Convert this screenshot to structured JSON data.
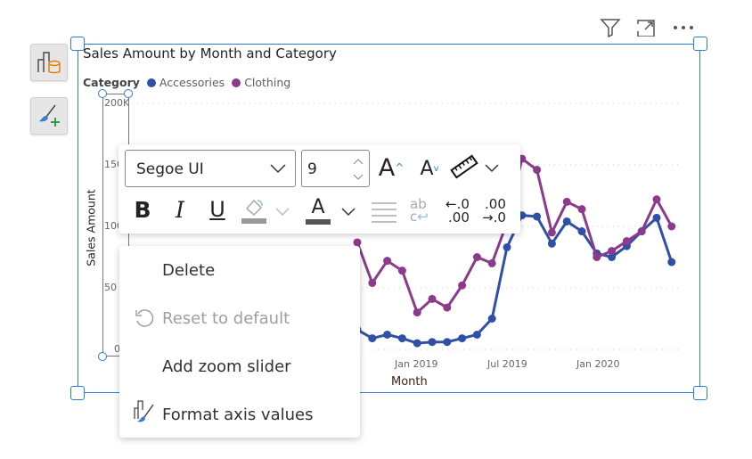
{
  "visual": {
    "title": "Sales Amount by Month and Category",
    "legend_title": "Category",
    "header_icons": [
      "filter-icon",
      "focus-mode-icon",
      "more-options-icon"
    ],
    "side_buttons": [
      "build-visual-icon",
      "format-visual-icon"
    ]
  },
  "chart_data": {
    "type": "line",
    "title": "Sales Amount by Month and Category",
    "xlabel": "Month",
    "ylabel": "Sales Amount",
    "y_ticks": [
      "200K",
      "150K",
      "100K",
      "50K",
      "0K"
    ],
    "y_tick_labels_visible": [
      "200K",
      "150",
      "100",
      "50",
      "0"
    ],
    "x_ticks": [
      "Jan 2019",
      "Jul 2019",
      "Jan 2020"
    ],
    "ylim": [
      0,
      200000
    ],
    "grid": true,
    "legend_placement": "top-left",
    "x": [
      "2018-09",
      "2018-10",
      "2018-11",
      "2018-12",
      "2019-01",
      "2019-02",
      "2019-03",
      "2019-04",
      "2019-05",
      "2019-06",
      "2019-07",
      "2019-08",
      "2019-09",
      "2019-10",
      "2019-11",
      "2019-12",
      "2020-01",
      "2020-02",
      "2020-03",
      "2020-04",
      "2020-05",
      "2020-06"
    ],
    "series": [
      {
        "name": "Accessories",
        "color": "#3050a8",
        "values": [
          16000,
          9000,
          12000,
          9000,
          5000,
          6000,
          6000,
          9000,
          12000,
          25000,
          83000,
          109000,
          108000,
          86000,
          104000,
          96000,
          78000,
          75000,
          84000,
          96000,
          107000,
          71000
        ]
      },
      {
        "name": "Clothing",
        "color": "#8b3a8c",
        "values": [
          87000,
          54000,
          72000,
          64000,
          30000,
          41000,
          34000,
          52000,
          75000,
          70000,
          103000,
          155000,
          146000,
          95000,
          120000,
          114000,
          75000,
          80000,
          88000,
          96000,
          122000,
          100000
        ]
      }
    ]
  },
  "toolbar": {
    "font": "Segoe UI",
    "size": "9",
    "icons": [
      "increase-font-icon",
      "decrease-font-icon",
      "ruler-icon",
      "bold-icon",
      "italic-icon",
      "underline-icon",
      "fill-color-icon",
      "font-color-icon",
      "align-icon",
      "word-wrap-icon",
      "decrease-decimal-icon",
      "increase-decimal-icon"
    ],
    "bold": "B",
    "italic": "I",
    "underline": "U",
    "font_color": "A",
    "grow": "A",
    "shrink": "A",
    "dec_a": "←.0",
    "dec_b": ".00",
    "inc_a": ".00",
    "inc_b": "→.0",
    "wrap_a": "ab",
    "wrap_b": "c"
  },
  "menu": {
    "items": [
      {
        "label": "Delete",
        "enabled": true
      },
      {
        "label": "Reset to default",
        "enabled": false
      },
      {
        "label": "Add zoom slider",
        "enabled": true
      },
      {
        "label": "Format axis values",
        "enabled": true
      }
    ]
  }
}
